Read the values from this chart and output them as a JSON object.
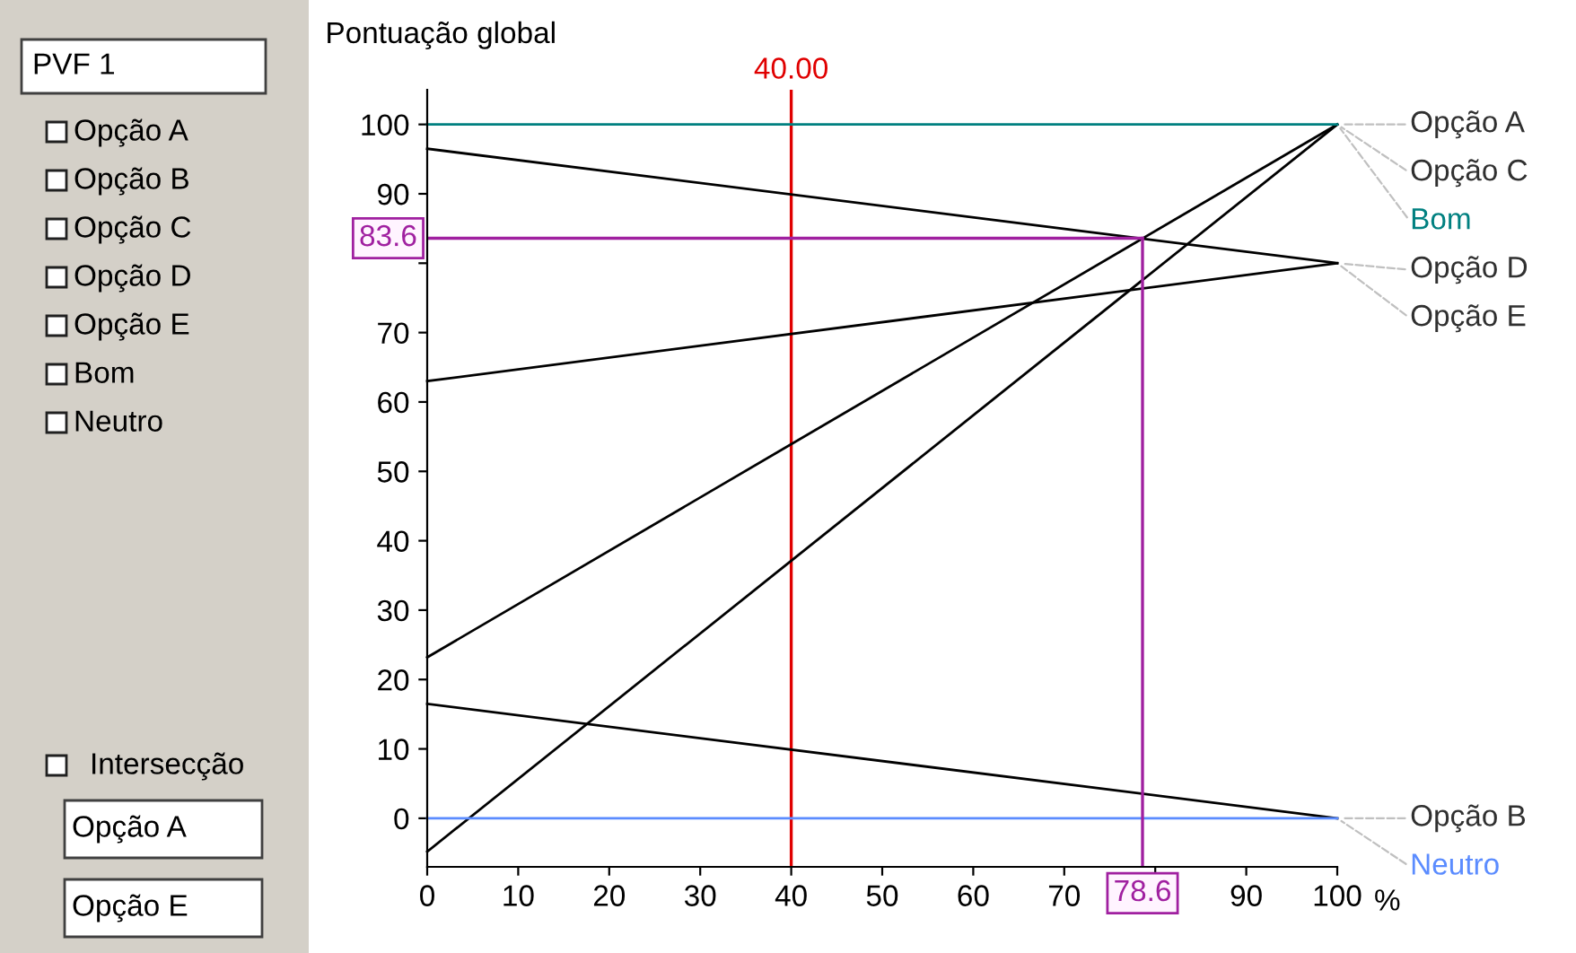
{
  "chart_data": [
    {
      "type": "other",
      "annotations": [
        "PVF 1",
        "Opção A",
        "Opção B",
        "Opção C",
        "Opção D",
        "Opção E",
        "Bom",
        "Neutro",
        "Intersecção",
        "Opção A",
        "Opção E"
      ]
    },
    {
      "type": "line",
      "ylabel": "Pontuação global",
      "xlabel": "%",
      "x": [
        0,
        100
      ],
      "xlim": [
        0,
        100
      ],
      "ylim": [
        -7,
        105
      ],
      "xticks": [
        0,
        10,
        20,
        30,
        40,
        50,
        60,
        70,
        {
          "value": 80,
          "label": null
        },
        90,
        100
      ],
      "yticks": [
        0,
        10,
        20,
        30,
        40,
        50,
        60,
        70,
        {
          "value": 80,
          "label": null
        },
        90,
        100
      ],
      "series": [
        {
          "name": "Opção A",
          "color": "#000000",
          "values": [
            23.2,
            100
          ]
        },
        {
          "name": "Opção B",
          "color": "#000000",
          "values": [
            16.5,
            0
          ]
        },
        {
          "name": "Opção C",
          "color": "#000000",
          "values": [
            -4.8,
            100
          ]
        },
        {
          "name": "Opção D",
          "color": "#000000",
          "values": [
            63,
            80
          ]
        },
        {
          "name": "Opção E",
          "color": "#000000",
          "values": [
            96.5,
            80
          ]
        },
        {
          "name": "Bom",
          "color": "#008080",
          "values": [
            100,
            100
          ]
        },
        {
          "name": "Neutro",
          "color": "#5b8cff",
          "values": [
            0,
            0
          ]
        }
      ],
      "ref_lines": [
        {
          "axis": "x",
          "value": 40,
          "label": "40.00",
          "color": "#e00000"
        }
      ],
      "annotations": [
        {
          "text": "83.6",
          "x": 78.6,
          "y": 83.6
        },
        {
          "text": "78.6",
          "x": 78.6,
          "y": 83.6
        }
      ],
      "grid": false,
      "legend": false,
      "marker": "none",
      "line_style": "solid"
    }
  ]
}
